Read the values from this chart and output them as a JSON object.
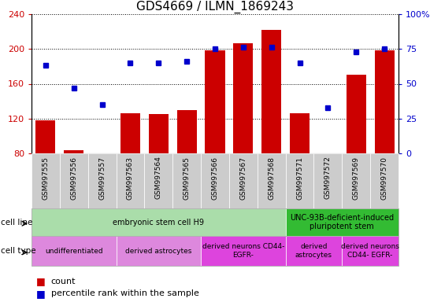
{
  "title": "GDS4669 / ILMN_1869243",
  "samples": [
    "GSM997555",
    "GSM997556",
    "GSM997557",
    "GSM997563",
    "GSM997564",
    "GSM997565",
    "GSM997566",
    "GSM997567",
    "GSM997568",
    "GSM997571",
    "GSM997572",
    "GSM997569",
    "GSM997570"
  ],
  "counts": [
    118,
    84,
    80,
    126,
    125,
    130,
    198,
    207,
    222,
    126,
    80,
    170,
    198
  ],
  "percentiles": [
    63,
    47,
    35,
    65,
    65,
    66,
    75,
    76,
    76,
    65,
    33,
    73,
    75
  ],
  "ylim_left": [
    80,
    240
  ],
  "ylim_right": [
    0,
    100
  ],
  "yticks_left": [
    80,
    120,
    160,
    200,
    240
  ],
  "yticks_right": [
    0,
    25,
    50,
    75,
    100
  ],
  "bar_color": "#cc0000",
  "dot_color": "#0000cc",
  "cell_line_groups": [
    {
      "label": "embryonic stem cell H9",
      "start": 0,
      "end": 9,
      "color": "#aaddaa"
    },
    {
      "label": "UNC-93B-deficient-induced\npluripotent stem",
      "start": 9,
      "end": 13,
      "color": "#33bb33"
    }
  ],
  "cell_type_groups": [
    {
      "label": "undifferentiated",
      "start": 0,
      "end": 3,
      "color": "#dd88dd"
    },
    {
      "label": "derived astrocytes",
      "start": 3,
      "end": 6,
      "color": "#dd88dd"
    },
    {
      "label": "derived neurons CD44-\nEGFR-",
      "start": 6,
      "end": 9,
      "color": "#dd44dd"
    },
    {
      "label": "derived\nastrocytes",
      "start": 9,
      "end": 11,
      "color": "#dd44dd"
    },
    {
      "label": "derived neurons\nCD44- EGFR-",
      "start": 11,
      "end": 13,
      "color": "#dd44dd"
    }
  ],
  "tick_bg_color": "#cccccc",
  "legend_count_color": "#cc0000",
  "legend_pct_color": "#0000cc",
  "left_tick_color": "#cc0000",
  "right_tick_color": "#0000cc"
}
